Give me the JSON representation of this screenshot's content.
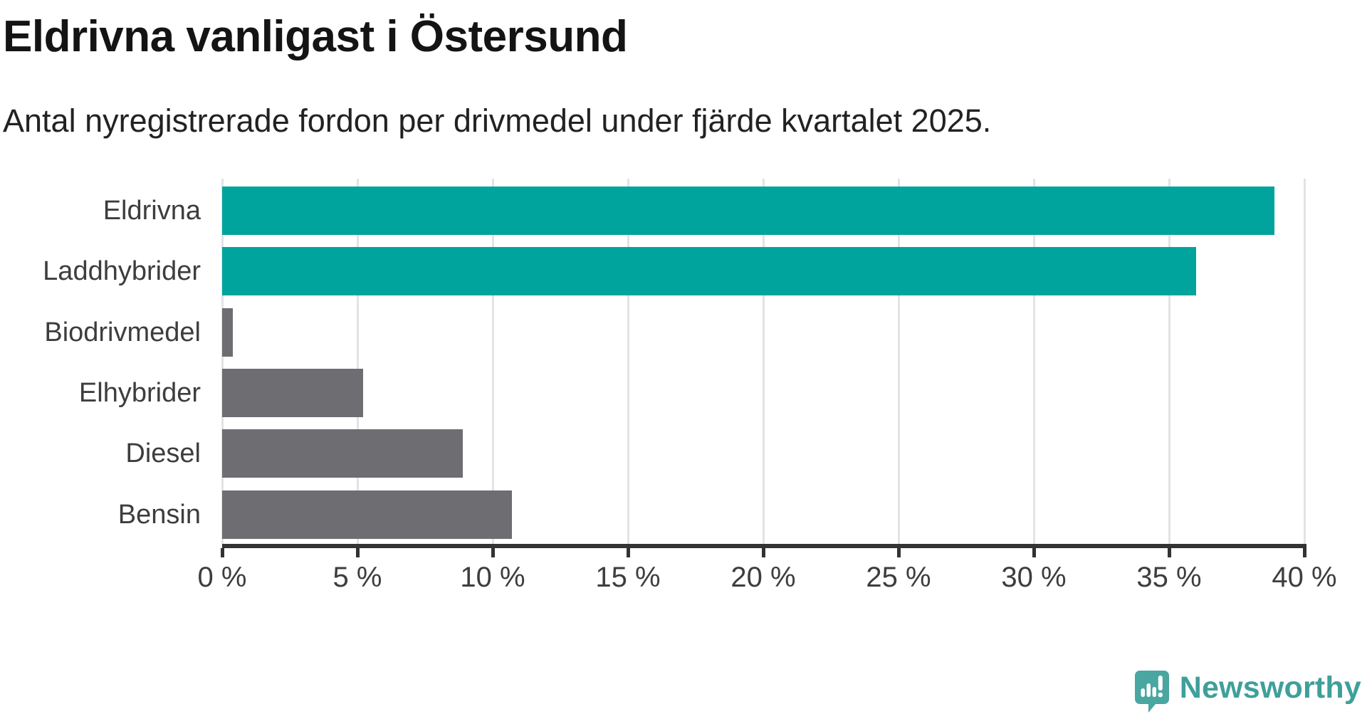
{
  "header": {
    "title": "Eldrivna vanligast i Östersund",
    "subtitle": "Antal nyregistrerade fordon per drivmedel under fjärde kvartalet 2025."
  },
  "chart_data": {
    "type": "bar",
    "orientation": "horizontal",
    "title": "Eldrivna vanligast i Östersund",
    "subtitle": "Antal nyregistrerade fordon per drivmedel under fjärde kvartalet 2025.",
    "categories": [
      "Eldrivna",
      "Laddhybrider",
      "Biodrivmedel",
      "Elhybrider",
      "Diesel",
      "Bensin"
    ],
    "values": [
      38.9,
      36.0,
      0.4,
      5.2,
      8.9,
      10.7
    ],
    "bar_colors": [
      "#00a49c",
      "#00a49c",
      "#6d6d72",
      "#6d6d72",
      "#6d6d72",
      "#6d6d72"
    ],
    "unit": "%",
    "xlim": [
      0,
      40
    ],
    "x_ticks": [
      0,
      5,
      10,
      15,
      20,
      25,
      30,
      35,
      40
    ],
    "x_tick_labels": [
      "0 %",
      "5 %",
      "10 %",
      "15 %",
      "20 %",
      "25 %",
      "30 %",
      "35 %",
      "40 %"
    ],
    "xlabel": "",
    "ylabel": "",
    "grid": "vertical-gridlines-on",
    "legend": "none"
  },
  "branding": {
    "logo_text": "Newsworthy",
    "logo_icon": "speech-bubble-with-bar-chart-and-exclamation",
    "logo_icon_color": "#4aa6a1",
    "logo_text_color": "#3f9f9a"
  },
  "colors": {
    "accent_teal": "#00a49c",
    "bar_gray": "#6d6d72",
    "gridline": "#e2e3e4",
    "axis": "#333333",
    "title_text": "#141414",
    "body_text": "#3d3d3d",
    "background": "#ffffff"
  }
}
